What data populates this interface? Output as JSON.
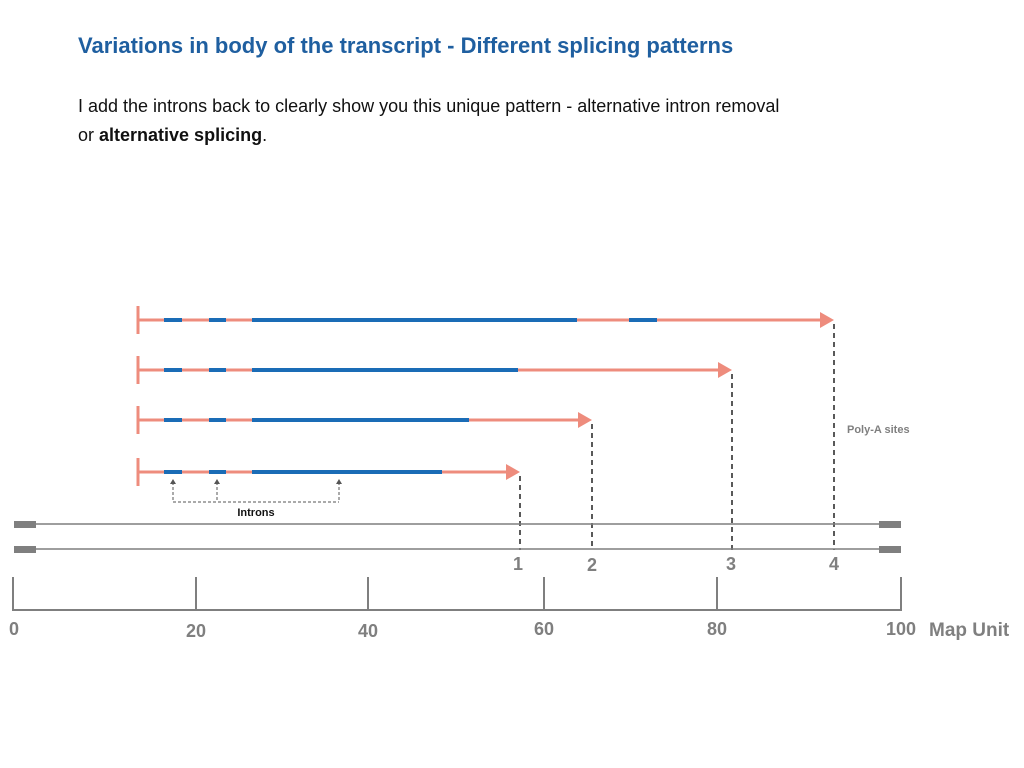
{
  "slide": {
    "title": "Variations in body of the transcript - Different splicing patterns",
    "body_line1": "I add the introns back to clearly show you this unique pattern - alternative intron removal",
    "body_prefix": "or ",
    "body_bold": "alternative splicing",
    "body_suffix": "."
  },
  "diagram": {
    "poly_a_label": "Poly-A sites",
    "introns_label": "Introns",
    "site_labels": [
      "1",
      "2",
      "3",
      "4"
    ],
    "axis_unit_label": "Map Unit",
    "axis_ticks": [
      "0",
      "20",
      "40",
      "60",
      "80",
      "100"
    ]
  },
  "colors": {
    "title": "#1f5fa0",
    "exon": "#1a6cb6",
    "transcript": "#ee8c7d",
    "genome": "#7f7f7f",
    "axis": "#7f7f7f",
    "dashed": "#222222"
  }
}
